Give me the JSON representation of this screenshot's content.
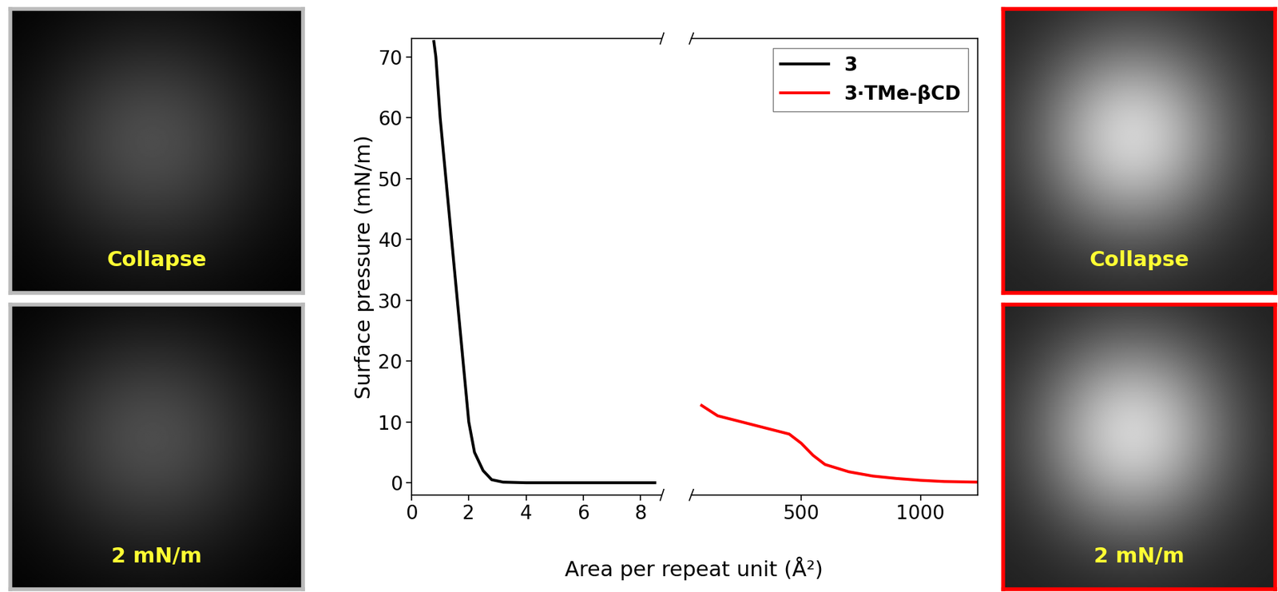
{
  "chart_data": [
    {
      "type": "line",
      "y_label": "Surface pressure (mN/m)",
      "x_label": "Area per repeat unit (Å²)",
      "xlim": [
        0,
        8.75
      ],
      "xticks": [
        0,
        2,
        4,
        6,
        8
      ],
      "ylim": [
        -2,
        73
      ],
      "yticks": [
        0,
        10,
        20,
        30,
        40,
        50,
        60,
        70
      ],
      "series": [
        {
          "name": "3",
          "color": "#000000",
          "x": [
            0.78,
            0.85,
            1.0,
            1.2,
            1.4,
            1.6,
            1.8,
            2.0,
            2.2,
            2.5,
            2.8,
            3.2,
            4.0,
            5.0,
            6.0,
            7.0,
            8.0,
            8.5
          ],
          "values": [
            72.5,
            70,
            60,
            50,
            40,
            30,
            20,
            10,
            5,
            2,
            0.5,
            0.1,
            0,
            0,
            0,
            0,
            0,
            0
          ]
        }
      ]
    },
    {
      "type": "line",
      "xlim": [
        40,
        1240
      ],
      "xticks": [
        500,
        1000
      ],
      "ylim": [
        -2,
        73
      ],
      "legend": "upper right",
      "series": [
        {
          "name": "3·TMe-βCD",
          "color": "#ff0000",
          "x": [
            83,
            150,
            250,
            350,
            450,
            500,
            550,
            600,
            700,
            800,
            900,
            1000,
            1100,
            1240
          ],
          "values": [
            12.7,
            11,
            10,
            9,
            8,
            6.5,
            4.5,
            3,
            1.8,
            1.1,
            0.7,
            0.4,
            0.2,
            0.1
          ]
        }
      ]
    }
  ],
  "panels": {
    "left": [
      "Collapse",
      "2 mN/m"
    ],
    "right": [
      "Collapse",
      "2 mN/m"
    ]
  }
}
